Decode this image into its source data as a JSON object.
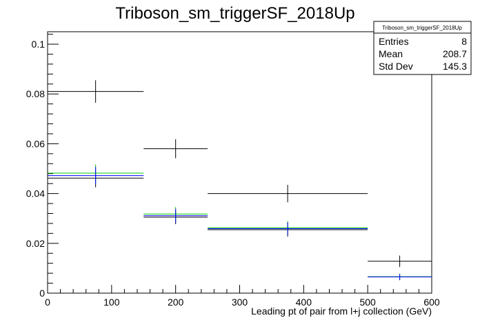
{
  "chart_data": {
    "type": "scatter",
    "title": "Triboson_sm_triggerSF_2018Up",
    "xlabel": "Leading pt of pair from l+j collection (GeV)",
    "ylabel": "",
    "xlim": [
      0,
      600
    ],
    "ylim": [
      0,
      0.105
    ],
    "x_ticks": [
      0,
      100,
      200,
      300,
      400,
      500,
      600
    ],
    "x_tick_labels": [
      "0",
      "100",
      "200",
      "300",
      "400",
      "500",
      "600"
    ],
    "y_ticks": [
      0,
      0.02,
      0.04,
      0.06,
      0.08,
      0.1
    ],
    "y_tick_labels": [
      "0",
      "0.02",
      "0.04",
      "0.06",
      "0.08",
      "0.1"
    ],
    "grid": false,
    "stats_box": {
      "title": "Triboson_sm_triggerSF_2018Up",
      "rows": [
        {
          "label": "Entries",
          "value": "8"
        },
        {
          "label": "Mean",
          "value": "208.7"
        },
        {
          "label": "Std Dev",
          "value": "145.3"
        }
      ]
    },
    "series": [
      {
        "color": "#000000",
        "points": [
          {
            "x": 75,
            "xlo": 0,
            "xhi": 150,
            "y": 0.081,
            "ylo": 0.0765,
            "yhi": 0.0855
          },
          {
            "x": 200,
            "xlo": 150,
            "xhi": 250,
            "y": 0.058,
            "ylo": 0.0542,
            "yhi": 0.0618
          },
          {
            "x": 375,
            "xlo": 250,
            "xhi": 500,
            "y": 0.04,
            "ylo": 0.0365,
            "yhi": 0.0435
          },
          {
            "x": 550,
            "xlo": 500,
            "xhi": 600,
            "y": 0.0128,
            "ylo": 0.0105,
            "yhi": 0.0151
          }
        ]
      },
      {
        "color": "#000000",
        "points": [
          {
            "x": 75,
            "xlo": 0,
            "xhi": 150,
            "y": 0.0462,
            "ylo": 0.0425,
            "yhi": 0.0499
          },
          {
            "x": 200,
            "xlo": 150,
            "xhi": 250,
            "y": 0.0305,
            "ylo": 0.0277,
            "yhi": 0.0333
          },
          {
            "x": 375,
            "xlo": 250,
            "xhi": 500,
            "y": 0.0255,
            "ylo": 0.0227,
            "yhi": 0.0283
          },
          {
            "x": 550,
            "xlo": 500,
            "xhi": 600,
            "y": 0.0065,
            "ylo": 0.0052,
            "yhi": 0.0078
          }
        ]
      },
      {
        "color": "#00cc00",
        "points": [
          {
            "x": 75,
            "xlo": 0,
            "xhi": 150,
            "y": 0.0482,
            "ylo": 0.0447,
            "yhi": 0.0517
          },
          {
            "x": 200,
            "xlo": 150,
            "xhi": 250,
            "y": 0.0318,
            "ylo": 0.029,
            "yhi": 0.0346
          },
          {
            "x": 375,
            "xlo": 250,
            "xhi": 500,
            "y": 0.0263,
            "ylo": 0.0237,
            "yhi": 0.0289
          },
          {
            "x": 550,
            "xlo": 500,
            "xhi": 600,
            "y": 0.0066,
            "ylo": 0.0054,
            "yhi": 0.0078
          }
        ]
      },
      {
        "color": "#0000ff",
        "points": [
          {
            "x": 75,
            "xlo": 0,
            "xhi": 150,
            "y": 0.0472,
            "ylo": 0.0437,
            "yhi": 0.0507
          },
          {
            "x": 200,
            "xlo": 150,
            "xhi": 250,
            "y": 0.0311,
            "ylo": 0.0283,
            "yhi": 0.0339
          },
          {
            "x": 375,
            "xlo": 250,
            "xhi": 500,
            "y": 0.0259,
            "ylo": 0.0233,
            "yhi": 0.0285
          },
          {
            "x": 550,
            "xlo": 500,
            "xhi": 600,
            "y": 0.0065,
            "ylo": 0.0053,
            "yhi": 0.0077
          }
        ]
      }
    ]
  }
}
